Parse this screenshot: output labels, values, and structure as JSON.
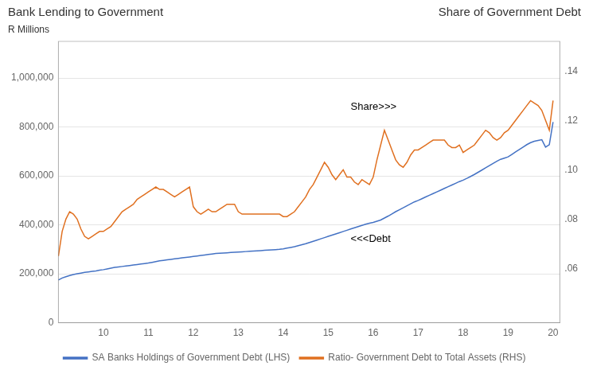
{
  "chart_data": {
    "type": "line",
    "title": "Bank Lending to Government",
    "ylabel": "R Millions",
    "y2label": "Share of Government Debt",
    "x": [
      9,
      9.083333,
      9.166667,
      9.25,
      9.333333,
      9.416667,
      9.5,
      9.583333,
      9.666667,
      9.75,
      9.833333,
      9.916667,
      10,
      10.083333,
      10.166667,
      10.25,
      10.333333,
      10.416667,
      10.5,
      10.583333,
      10.666667,
      10.75,
      10.833333,
      10.916667,
      11,
      11.083333,
      11.166667,
      11.25,
      11.333333,
      11.416667,
      11.5,
      11.583333,
      11.666667,
      11.75,
      11.833333,
      11.916667,
      12,
      12.083333,
      12.166667,
      12.25,
      12.333333,
      12.416667,
      12.5,
      12.583333,
      12.666667,
      12.75,
      12.833333,
      12.916667,
      13,
      13.083333,
      13.166667,
      13.25,
      13.333333,
      13.416667,
      13.5,
      13.583333,
      13.666667,
      13.75,
      13.833333,
      13.916667,
      14,
      14.083333,
      14.166667,
      14.25,
      14.333333,
      14.416667,
      14.5,
      14.583333,
      14.666667,
      14.75,
      14.833333,
      14.916667,
      15,
      15.083333,
      15.166667,
      15.25,
      15.333333,
      15.416667,
      15.5,
      15.583333,
      15.666667,
      15.75,
      15.833333,
      15.916667,
      16,
      16.083333,
      16.166667,
      16.25,
      16.333333,
      16.416667,
      16.5,
      16.583333,
      16.666667,
      16.75,
      16.833333,
      16.916667,
      17,
      17.083333,
      17.166667,
      17.25,
      17.333333,
      17.416667,
      17.5,
      17.583333,
      17.666667,
      17.75,
      17.833333,
      17.916667,
      18,
      18.083333,
      18.166667,
      18.25,
      18.333333,
      18.416667,
      18.5,
      18.583333,
      18.666667,
      18.75,
      18.833333,
      18.916667,
      19,
      19.083333,
      19.166667,
      19.25,
      19.333333,
      19.416667,
      19.5,
      19.583333,
      19.666667,
      19.75,
      19.833333,
      19.916667,
      20
    ],
    "series": [
      {
        "name": "SA Banks Holdings of Government Debt (LHS)",
        "color": "#4472C4",
        "values": [
          175000,
          183000,
          188000,
          193000,
          197000,
          200000,
          203000,
          206000,
          208000,
          210000,
          212000,
          215000,
          217000,
          220000,
          223000,
          226000,
          228000,
          230000,
          232000,
          234000,
          236000,
          238000,
          240000,
          242000,
          244000,
          247000,
          250000,
          253000,
          255000,
          257000,
          259000,
          261000,
          263000,
          265000,
          267000,
          269000,
          271000,
          273000,
          275000,
          277000,
          279000,
          281000,
          283000,
          284000,
          285000,
          286000,
          287000,
          288000,
          289000,
          290000,
          291000,
          292000,
          293000,
          294000,
          295000,
          296000,
          297000,
          298000,
          299000,
          300000,
          302000,
          305000,
          308000,
          311000,
          315000,
          319000,
          323000,
          328000,
          333000,
          338000,
          343000,
          348000,
          353000,
          358000,
          363000,
          368000,
          373000,
          378000,
          383000,
          388000,
          393000,
          398000,
          403000,
          407000,
          410000,
          415000,
          420000,
          428000,
          436000,
          445000,
          454000,
          462000,
          470000,
          478000,
          486000,
          494000,
          500000,
          507000,
          514000,
          521000,
          528000,
          535000,
          542000,
          549000,
          556000,
          563000,
          570000,
          577000,
          583000,
          590000,
          598000,
          606000,
          615000,
          624000,
          633000,
          642000,
          651000,
          660000,
          668000,
          673000,
          678000,
          688000,
          698000,
          708000,
          718000,
          728000,
          736000,
          742000,
          745000,
          748000,
          718000,
          728000,
          820000
        ]
      },
      {
        "name": "Ratio- Government Debt to Total Assets (RHS)",
        "color": "#E07020",
        "axis": "y2",
        "values": [
          0.065,
          0.075,
          0.08,
          0.083,
          0.082,
          0.08,
          0.076,
          0.073,
          0.072,
          0.073,
          0.074,
          0.075,
          0.075,
          0.076,
          0.077,
          0.079,
          0.081,
          0.083,
          0.084,
          0.085,
          0.086,
          0.088,
          0.089,
          0.09,
          0.091,
          0.092,
          0.093,
          0.092,
          0.092,
          0.091,
          0.09,
          0.089,
          0.09,
          0.091,
          0.092,
          0.093,
          0.085,
          0.083,
          0.082,
          0.083,
          0.084,
          0.083,
          0.083,
          0.084,
          0.085,
          0.086,
          0.086,
          0.086,
          0.083,
          0.082,
          0.082,
          0.082,
          0.082,
          0.082,
          0.082,
          0.082,
          0.082,
          0.082,
          0.082,
          0.082,
          0.081,
          0.081,
          0.082,
          0.083,
          0.085,
          0.087,
          0.089,
          0.092,
          0.094,
          0.097,
          0.1,
          0.103,
          0.101,
          0.098,
          0.096,
          0.098,
          0.1,
          0.097,
          0.097,
          0.095,
          0.094,
          0.096,
          0.095,
          0.094,
          0.097,
          0.104,
          0.11,
          0.116,
          0.112,
          0.108,
          0.104,
          0.102,
          0.101,
          0.103,
          0.106,
          0.108,
          0.108,
          0.109,
          0.11,
          0.111,
          0.112,
          0.112,
          0.112,
          0.112,
          0.11,
          0.109,
          0.109,
          0.11,
          0.107,
          0.108,
          0.109,
          0.11,
          0.112,
          0.114,
          0.116,
          0.115,
          0.113,
          0.112,
          0.113,
          0.115,
          0.116,
          0.118,
          0.12,
          0.122,
          0.124,
          0.126,
          0.128,
          0.127,
          0.126,
          0.124,
          0.12,
          0.116,
          0.128
        ]
      }
    ],
    "xlim": [
      9.0,
      20.15
    ],
    "xticks": [
      10,
      11,
      12,
      13,
      14,
      15,
      16,
      17,
      18,
      19,
      20
    ],
    "ylim": [
      0,
      1150000
    ],
    "yticks": [
      0,
      {
        "value": 200000,
        "label": "200,000"
      },
      {
        "value": 400000,
        "label": "400,000"
      },
      {
        "value": 600000,
        "label": "600,000"
      },
      {
        "value": 800000,
        "label": "800,000"
      },
      {
        "value": 1000000,
        "label": "1,000,000"
      }
    ],
    "y2lim": [
      0.038,
      0.152
    ],
    "y2ticks": [
      {
        "value": 0.06,
        "label": ".06"
      },
      {
        "value": 0.08,
        "label": ".08"
      },
      {
        "value": 0.1,
        "label": ".10"
      },
      {
        "value": 0.12,
        "label": ".12"
      },
      {
        "value": 0.14,
        "label": ".14"
      }
    ],
    "annotations": [
      {
        "text": "Share>>>",
        "x": 15.5,
        "y": 870000
      },
      {
        "text": "<<<Debt",
        "x": 15.5,
        "y": 330000
      }
    ],
    "grid": true,
    "legend": "bottom"
  }
}
